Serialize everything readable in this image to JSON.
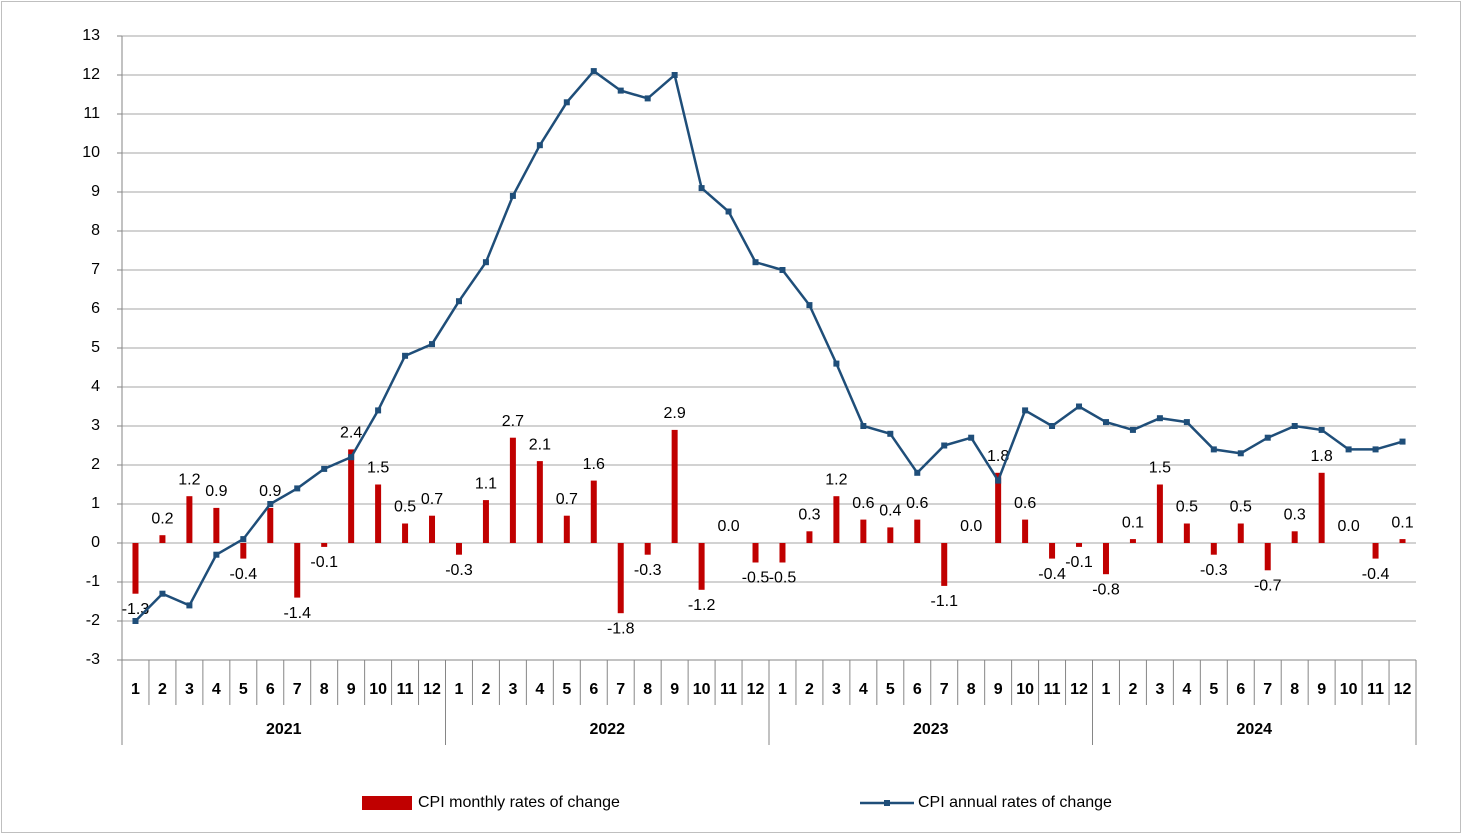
{
  "chart_data": {
    "type": "bar-line",
    "categories": [
      "1",
      "2",
      "3",
      "4",
      "5",
      "6",
      "7",
      "8",
      "9",
      "10",
      "11",
      "12",
      "1",
      "2",
      "3",
      "4",
      "5",
      "6",
      "7",
      "8",
      "9",
      "10",
      "11",
      "12",
      "1",
      "2",
      "3",
      "4",
      "5",
      "6",
      "7",
      "8",
      "9",
      "10",
      "11",
      "12",
      "1",
      "2",
      "3",
      "4",
      "5",
      "6",
      "7",
      "8",
      "9",
      "10",
      "11",
      "12"
    ],
    "years": [
      "2021",
      "2022",
      "2023",
      "2024"
    ],
    "series": [
      {
        "name": "CPI monthly rates of change",
        "type": "bar",
        "color": "#c00000",
        "values": [
          -1.3,
          0.2,
          1.2,
          0.9,
          -0.4,
          0.9,
          -1.4,
          -0.1,
          2.4,
          1.5,
          0.5,
          0.7,
          -0.3,
          1.1,
          2.7,
          2.1,
          0.7,
          1.6,
          -1.8,
          -0.3,
          2.9,
          -1.2,
          0,
          -0.5,
          -0.5,
          0.3,
          1.2,
          0.6,
          0.4,
          0.6,
          -1.1,
          0,
          1.8,
          0.6,
          -0.4,
          -0.1,
          -0.8,
          0.1,
          1.5,
          0.5,
          -0.3,
          0.5,
          -0.7,
          0.3,
          1.8,
          0,
          -0.4,
          0.1
        ],
        "value_labels": [
          "-1.3",
          "0.2",
          "1.2",
          "0.9",
          "-0.4",
          "0.9",
          "-1.4",
          "-0.1",
          "2.4",
          "1.5",
          "0.5",
          "0.7",
          "-0.3",
          "1.1",
          "2.7",
          "2.1",
          "0.7",
          "1.6",
          "-1.8",
          "-0.3",
          "2.9",
          "-1.2",
          "0.0",
          "-0.5",
          "-0.5",
          "0.3",
          "1.2",
          "0.6",
          "0.4",
          "0.6",
          "-1.1",
          "0.0",
          "1.8",
          "0.6",
          "-0.4",
          "-0.1",
          "-0.8",
          "0.1",
          "1.5",
          "0.5",
          "-0.3",
          "0.5",
          "-0.7",
          "0.3",
          "1.8",
          "0.0",
          "-0.4",
          "0.1"
        ]
      },
      {
        "name": "CPI annual rates of change",
        "type": "line",
        "color": "#1f4e79",
        "values": [
          -2.0,
          -1.3,
          -1.6,
          -0.3,
          0.1,
          1.0,
          1.4,
          1.9,
          2.2,
          3.4,
          4.8,
          5.1,
          6.2,
          7.2,
          8.9,
          10.2,
          11.3,
          12.1,
          11.6,
          11.4,
          12.0,
          9.1,
          8.5,
          7.2,
          7.0,
          6.1,
          4.6,
          3.0,
          2.8,
          1.8,
          2.5,
          2.7,
          1.6,
          3.4,
          3.0,
          3.5,
          3.1,
          2.9,
          3.2,
          3.1,
          2.4,
          2.3,
          2.7,
          3.0,
          2.9,
          2.4,
          2.4,
          2.6
        ]
      }
    ],
    "ylim": [
      -3,
      13
    ],
    "yticks": [
      -3,
      -2,
      -1,
      0,
      1,
      2,
      3,
      4,
      5,
      6,
      7,
      8,
      9,
      10,
      11,
      12,
      13
    ],
    "grid": true,
    "legend": "bottom"
  }
}
